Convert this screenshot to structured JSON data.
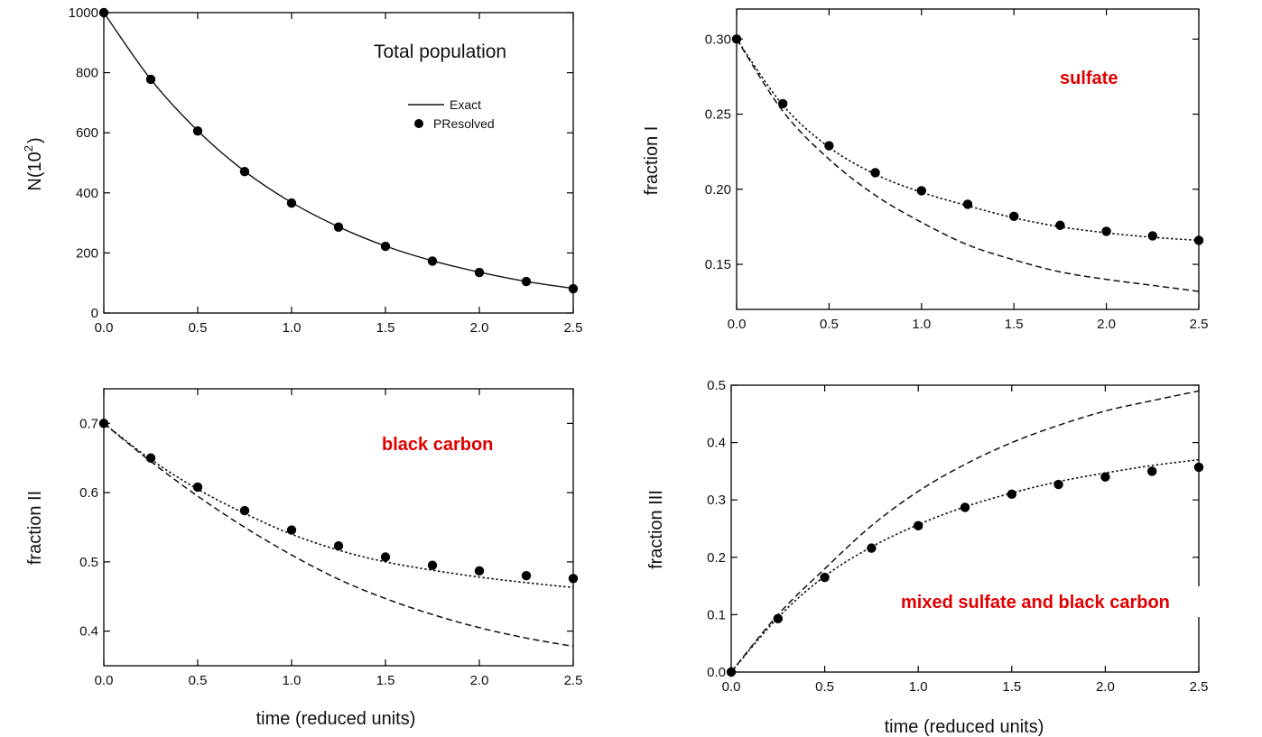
{
  "chart_data": [
    {
      "type": "line",
      "title": "",
      "xlabel": "",
      "ylabel": "N(10^2)",
      "ylabel_main": "N(10",
      "ylabel_sup": "2",
      "ylabel_close": ")",
      "xlim": [
        0,
        2.5
      ],
      "ylim": [
        0,
        1000
      ],
      "xticks": [
        "0.0",
        "0.5",
        "1.0",
        "1.5",
        "2.0",
        "2.5"
      ],
      "yticks": [
        "0",
        "200",
        "400",
        "600",
        "800",
        "1000"
      ],
      "annotation": "Total population",
      "legend": {
        "position": "upper-right",
        "entries": [
          "Exact",
          "PResolved"
        ]
      },
      "series": [
        {
          "name": "Exact",
          "style": "solid",
          "x": [
            0,
            0.25,
            0.5,
            0.75,
            1.0,
            1.25,
            1.5,
            1.75,
            2.0,
            2.25,
            2.5
          ],
          "values": [
            1000,
            778,
            607,
            472,
            368,
            287,
            223,
            174,
            136,
            105,
            82
          ]
        },
        {
          "name": "PResolved",
          "style": "markers",
          "x": [
            0,
            0.25,
            0.5,
            0.75,
            1.0,
            1.25,
            1.5,
            1.75,
            2.0,
            2.25,
            2.5
          ],
          "values": [
            1000,
            778,
            606,
            471,
            366,
            286,
            222,
            173,
            135,
            105,
            81
          ]
        }
      ]
    },
    {
      "type": "line",
      "title": "",
      "xlabel": "",
      "ylabel": "fraction I",
      "xlim": [
        0,
        2.5
      ],
      "ylim": [
        0.12,
        0.32
      ],
      "xticks": [
        "0.0",
        "0.5",
        "1.0",
        "1.5",
        "2.0",
        "2.5"
      ],
      "yticks": [
        "0.15",
        "0.20",
        "0.25",
        "0.30"
      ],
      "annotation": "sulfate",
      "series": [
        {
          "style": "dashed",
          "x": [
            0,
            0.25,
            0.5,
            0.75,
            1.0,
            1.25,
            1.5,
            1.75,
            2.0,
            2.25,
            2.5
          ],
          "values": [
            0.3,
            0.252,
            0.22,
            0.196,
            0.178,
            0.163,
            0.153,
            0.145,
            0.14,
            0.136,
            0.132
          ]
        },
        {
          "style": "dotted",
          "x": [
            0,
            0.25,
            0.5,
            0.75,
            1.0,
            1.25,
            1.5,
            1.75,
            2.0,
            2.25,
            2.5
          ],
          "values": [
            0.3,
            0.256,
            0.228,
            0.21,
            0.198,
            0.189,
            0.181,
            0.175,
            0.171,
            0.168,
            0.166
          ]
        },
        {
          "style": "markers",
          "x": [
            0,
            0.25,
            0.5,
            0.75,
            1.0,
            1.25,
            1.5,
            1.75,
            2.0,
            2.25,
            2.5
          ],
          "values": [
            0.3,
            0.257,
            0.229,
            0.211,
            0.199,
            0.19,
            0.182,
            0.176,
            0.172,
            0.169,
            0.166
          ]
        }
      ]
    },
    {
      "type": "line",
      "title": "",
      "xlabel": "time (reduced units)",
      "ylabel": "fraction II",
      "xlim": [
        0,
        2.5
      ],
      "ylim": [
        0.35,
        0.75
      ],
      "xticks": [
        "0.0",
        "0.5",
        "1.0",
        "1.5",
        "2.0",
        "2.5"
      ],
      "yticks": [
        "0.4",
        "0.5",
        "0.6",
        "0.7"
      ],
      "annotation": "black carbon",
      "series": [
        {
          "style": "dashed",
          "x": [
            0,
            0.25,
            0.5,
            0.75,
            1.0,
            1.25,
            1.5,
            1.75,
            2.0,
            2.25,
            2.5
          ],
          "values": [
            0.7,
            0.645,
            0.595,
            0.55,
            0.51,
            0.475,
            0.447,
            0.424,
            0.405,
            0.39,
            0.378
          ]
        },
        {
          "style": "dotted",
          "x": [
            0,
            0.25,
            0.5,
            0.75,
            1.0,
            1.25,
            1.5,
            1.75,
            2.0,
            2.25,
            2.5
          ],
          "values": [
            0.7,
            0.648,
            0.605,
            0.57,
            0.54,
            0.517,
            0.5,
            0.488,
            0.478,
            0.47,
            0.463
          ]
        },
        {
          "style": "markers",
          "x": [
            0,
            0.25,
            0.5,
            0.75,
            1.0,
            1.25,
            1.5,
            1.75,
            2.0,
            2.25,
            2.5
          ],
          "values": [
            0.7,
            0.65,
            0.608,
            0.574,
            0.546,
            0.523,
            0.507,
            0.495,
            0.487,
            0.48,
            0.476
          ]
        }
      ]
    },
    {
      "type": "line",
      "title": "",
      "xlabel": "time (reduced units)",
      "ylabel": "fraction III",
      "xlim": [
        0,
        2.5
      ],
      "ylim": [
        0,
        0.5
      ],
      "xticks": [
        "0.0",
        "0.5",
        "1.0",
        "1.5",
        "2.0",
        "2.5"
      ],
      "yticks": [
        "0.0",
        "0.1",
        "0.2",
        "0.3",
        "0.4",
        "0.5"
      ],
      "annotation": "mixed sulfate and black carbon",
      "series": [
        {
          "style": "dashed",
          "x": [
            0,
            0.25,
            0.5,
            0.75,
            1.0,
            1.25,
            1.5,
            1.75,
            2.0,
            2.25,
            2.5
          ],
          "values": [
            0.0,
            0.1,
            0.18,
            0.255,
            0.315,
            0.362,
            0.4,
            0.43,
            0.455,
            0.473,
            0.49
          ]
        },
        {
          "style": "dotted",
          "x": [
            0,
            0.25,
            0.5,
            0.75,
            1.0,
            1.25,
            1.5,
            1.75,
            2.0,
            2.25,
            2.5
          ],
          "values": [
            0.0,
            0.095,
            0.167,
            0.218,
            0.257,
            0.288,
            0.312,
            0.332,
            0.347,
            0.36,
            0.37
          ]
        },
        {
          "style": "markers",
          "x": [
            0,
            0.25,
            0.5,
            0.75,
            1.0,
            1.25,
            1.5,
            1.75,
            2.0,
            2.25,
            2.5
          ],
          "values": [
            0.0,
            0.093,
            0.165,
            0.216,
            0.255,
            0.287,
            0.31,
            0.327,
            0.34,
            0.35,
            0.357
          ]
        }
      ]
    }
  ]
}
